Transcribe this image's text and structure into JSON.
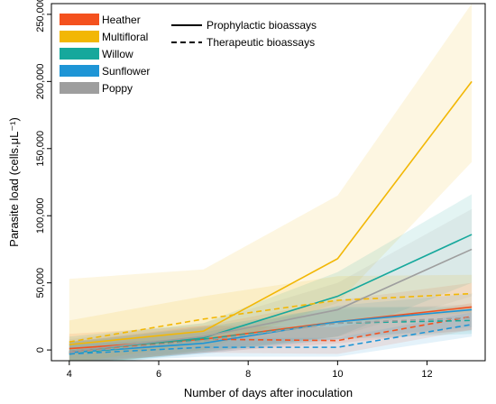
{
  "chart_data": {
    "type": "line",
    "xlabel": "Number of days after inoculation",
    "ylabel": "Parasite load (cells.μL⁻¹)",
    "xlim": [
      3.6,
      13.3
    ],
    "ylim": [
      -8000,
      258000
    ],
    "x_ticks": [
      4,
      6,
      8,
      10,
      12
    ],
    "y_ticks": [
      0,
      50000,
      100000,
      150000,
      200000,
      250000
    ],
    "y_tick_labels": [
      "0",
      "50,000",
      "100,000",
      "150,000",
      "200,000",
      "250,000"
    ],
    "grid": false,
    "legend_position": "top-left",
    "x": [
      4,
      7,
      10,
      13
    ],
    "series": [
      {
        "name": "Heather",
        "color": "#F4511E",
        "style": "solid",
        "values": [
          1000,
          8000,
          21000,
          32000
        ],
        "band_lower": [
          -10000,
          -2000,
          5000,
          15000
        ],
        "band_upper": [
          12000,
          18000,
          37000,
          50000
        ]
      },
      {
        "name": "Multifloral",
        "color": "#F2B705",
        "style": "solid",
        "values": [
          4000,
          14000,
          68000,
          200000
        ],
        "band_lower": [
          -13000,
          0,
          35000,
          140000
        ],
        "band_upper": [
          53000,
          60000,
          115000,
          258000
        ]
      },
      {
        "name": "Willow",
        "color": "#16A89C",
        "style": "solid",
        "values": [
          -1000,
          9000,
          40000,
          86000
        ],
        "band_lower": [
          -13000,
          -2000,
          10000,
          50000
        ],
        "band_upper": [
          10000,
          20000,
          58000,
          116000
        ]
      },
      {
        "name": "Sunflower",
        "color": "#1E95D6",
        "style": "solid",
        "values": [
          -2000,
          5000,
          21000,
          30000
        ],
        "band_lower": [
          -10000,
          -3000,
          8000,
          17000
        ],
        "band_upper": [
          6000,
          13000,
          33000,
          42000
        ]
      },
      {
        "name": "Poppy",
        "color": "#9E9E9E",
        "style": "solid",
        "values": [
          -1000,
          10000,
          30000,
          75000
        ],
        "band_lower": [
          -10000,
          0,
          10000,
          40000
        ],
        "band_upper": [
          8000,
          20000,
          50000,
          105000
        ]
      },
      {
        "name": "Heather",
        "color": "#F4511E",
        "style": "dashed",
        "values": [
          -2000,
          8000,
          7000,
          25000
        ],
        "band_lower": [
          -10000,
          -2000,
          -3000,
          15000
        ],
        "band_upper": [
          6000,
          18000,
          17000,
          35000
        ]
      },
      {
        "name": "Multifloral",
        "color": "#F2B705",
        "style": "dashed",
        "values": [
          6000,
          23000,
          37000,
          42000
        ],
        "band_lower": [
          -10000,
          5000,
          20000,
          28000
        ],
        "band_upper": [
          22000,
          40000,
          55000,
          56000
        ]
      },
      {
        "name": "Willow",
        "color": "#16A89C",
        "style": "dashed",
        "values": [
          -3000,
          8000,
          20000,
          22000
        ],
        "band_lower": [
          -12000,
          -1000,
          8000,
          12000
        ],
        "band_upper": [
          6000,
          17000,
          32000,
          32000
        ]
      },
      {
        "name": "Sunflower",
        "color": "#1E95D6",
        "style": "dashed",
        "values": [
          -3000,
          2000,
          2000,
          19000
        ],
        "band_lower": [
          -10000,
          -5000,
          -5000,
          10000
        ],
        "band_upper": [
          4000,
          9000,
          9000,
          28000
        ]
      },
      {
        "name": "Poppy",
        "color": "#9E9E9E",
        "style": "dashed",
        "values": [
          -2000,
          7000,
          20000,
          24000
        ],
        "band_lower": [
          -10000,
          -2000,
          10000,
          14000
        ],
        "band_upper": [
          6000,
          16000,
          30000,
          34000
        ]
      }
    ],
    "legend_colors": [
      {
        "name": "Heather",
        "color": "#F4511E"
      },
      {
        "name": "Multifloral",
        "color": "#F2B705"
      },
      {
        "name": "Willow",
        "color": "#16A89C"
      },
      {
        "name": "Sunflower",
        "color": "#1E95D6"
      },
      {
        "name": "Poppy",
        "color": "#9E9E9E"
      }
    ],
    "legend_styles": [
      {
        "name": "Prophylactic bioassays",
        "style": "solid"
      },
      {
        "name": "Therapeutic bioassays",
        "style": "dashed"
      }
    ]
  }
}
